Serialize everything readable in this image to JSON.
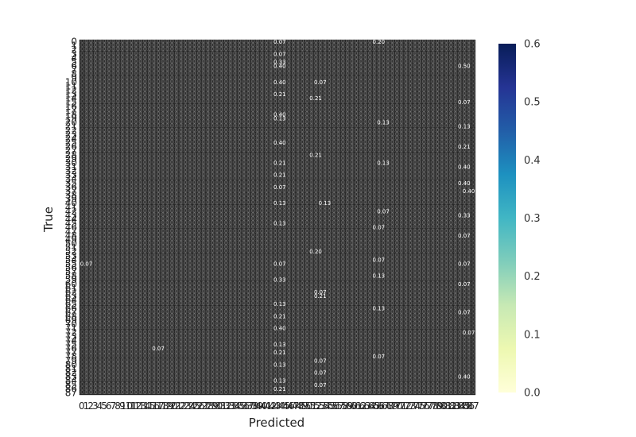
{
  "chart_data": {
    "type": "heatmap",
    "xlabel": "Predicted",
    "ylabel": "True",
    "colorbar": {
      "range": [
        0.0,
        0.6
      ],
      "ticks": [
        "0.0",
        "0.1",
        "0.2",
        "0.3",
        "0.4",
        "0.5",
        "0.6"
      ],
      "colormap": [
        "#ffffd9",
        "#edf8b1",
        "#c7e9b4",
        "#7fcdbb",
        "#41b6c4",
        "#1d91c0",
        "#225ea8",
        "#253494",
        "#081d58"
      ]
    },
    "matrix_size": 88,
    "cell_annotation_format": "0.00",
    "cell_edge_color": "#2a2a2a",
    "background_color": "#262626",
    "highlight_cells": [
      {
        "row": 0,
        "col": 44,
        "text": "0.07"
      },
      {
        "row": 0,
        "col": 66,
        "text": "0.20"
      },
      {
        "row": 3,
        "col": 44,
        "text": "0.07"
      },
      {
        "row": 5,
        "col": 44,
        "text": "0.33"
      },
      {
        "row": 6,
        "col": 44,
        "text": "0.40"
      },
      {
        "row": 6,
        "col": 85,
        "text": "0.50"
      },
      {
        "row": 10,
        "col": 44,
        "text": "0.40"
      },
      {
        "row": 10,
        "col": 53,
        "text": "0.07"
      },
      {
        "row": 13,
        "col": 44,
        "text": "0.21"
      },
      {
        "row": 14,
        "col": 52,
        "text": "0.21"
      },
      {
        "row": 15,
        "col": 85,
        "text": "0.07"
      },
      {
        "row": 18,
        "col": 44,
        "text": "0.40"
      },
      {
        "row": 19,
        "col": 44,
        "text": "0.13"
      },
      {
        "row": 20,
        "col": 67,
        "text": "0.13"
      },
      {
        "row": 21,
        "col": 85,
        "text": "0.13"
      },
      {
        "row": 25,
        "col": 44,
        "text": "0.40"
      },
      {
        "row": 26,
        "col": 85,
        "text": "0.21"
      },
      {
        "row": 28,
        "col": 52,
        "text": "0.21"
      },
      {
        "row": 30,
        "col": 44,
        "text": "0.21"
      },
      {
        "row": 30,
        "col": 67,
        "text": "0.13"
      },
      {
        "row": 31,
        "col": 85,
        "text": "0.40"
      },
      {
        "row": 33,
        "col": 44,
        "text": "0.21"
      },
      {
        "row": 35,
        "col": 85,
        "text": "0.40"
      },
      {
        "row": 36,
        "col": 44,
        "text": "0.07"
      },
      {
        "row": 37,
        "col": 86,
        "text": "0.40"
      },
      {
        "row": 40,
        "col": 44,
        "text": "0.13"
      },
      {
        "row": 40,
        "col": 54,
        "text": "0.13"
      },
      {
        "row": 42,
        "col": 67,
        "text": "0.07"
      },
      {
        "row": 43,
        "col": 85,
        "text": "0.33"
      },
      {
        "row": 45,
        "col": 44,
        "text": "0.13"
      },
      {
        "row": 46,
        "col": 66,
        "text": "0.07"
      },
      {
        "row": 48,
        "col": 85,
        "text": "0.07"
      },
      {
        "row": 52,
        "col": 52,
        "text": "0.20"
      },
      {
        "row": 54,
        "col": 66,
        "text": "0.07"
      },
      {
        "row": 55,
        "col": 1,
        "text": "0.07"
      },
      {
        "row": 55,
        "col": 44,
        "text": "0.07"
      },
      {
        "row": 55,
        "col": 85,
        "text": "0.07"
      },
      {
        "row": 58,
        "col": 66,
        "text": "0.13"
      },
      {
        "row": 59,
        "col": 44,
        "text": "0.33"
      },
      {
        "row": 60,
        "col": 85,
        "text": "0.07"
      },
      {
        "row": 62,
        "col": 53,
        "text": "0.07"
      },
      {
        "row": 63,
        "col": 53,
        "text": "0.21"
      },
      {
        "row": 65,
        "col": 44,
        "text": "0.13"
      },
      {
        "row": 66,
        "col": 66,
        "text": "0.13"
      },
      {
        "row": 67,
        "col": 85,
        "text": "0.07"
      },
      {
        "row": 68,
        "col": 44,
        "text": "0.21"
      },
      {
        "row": 71,
        "col": 44,
        "text": "0.40"
      },
      {
        "row": 72,
        "col": 86,
        "text": "0.07"
      },
      {
        "row": 75,
        "col": 44,
        "text": "0.13"
      },
      {
        "row": 76,
        "col": 17,
        "text": "0.07"
      },
      {
        "row": 77,
        "col": 44,
        "text": "0.21"
      },
      {
        "row": 78,
        "col": 66,
        "text": "0.07"
      },
      {
        "row": 79,
        "col": 53,
        "text": "0.07"
      },
      {
        "row": 80,
        "col": 44,
        "text": "0.13"
      },
      {
        "row": 82,
        "col": 53,
        "text": "0.07"
      },
      {
        "row": 83,
        "col": 85,
        "text": "0.40"
      },
      {
        "row": 84,
        "col": 44,
        "text": "0.13"
      },
      {
        "row": 85,
        "col": 53,
        "text": "0.07"
      },
      {
        "row": 86,
        "col": 44,
        "text": "0.21"
      }
    ]
  }
}
